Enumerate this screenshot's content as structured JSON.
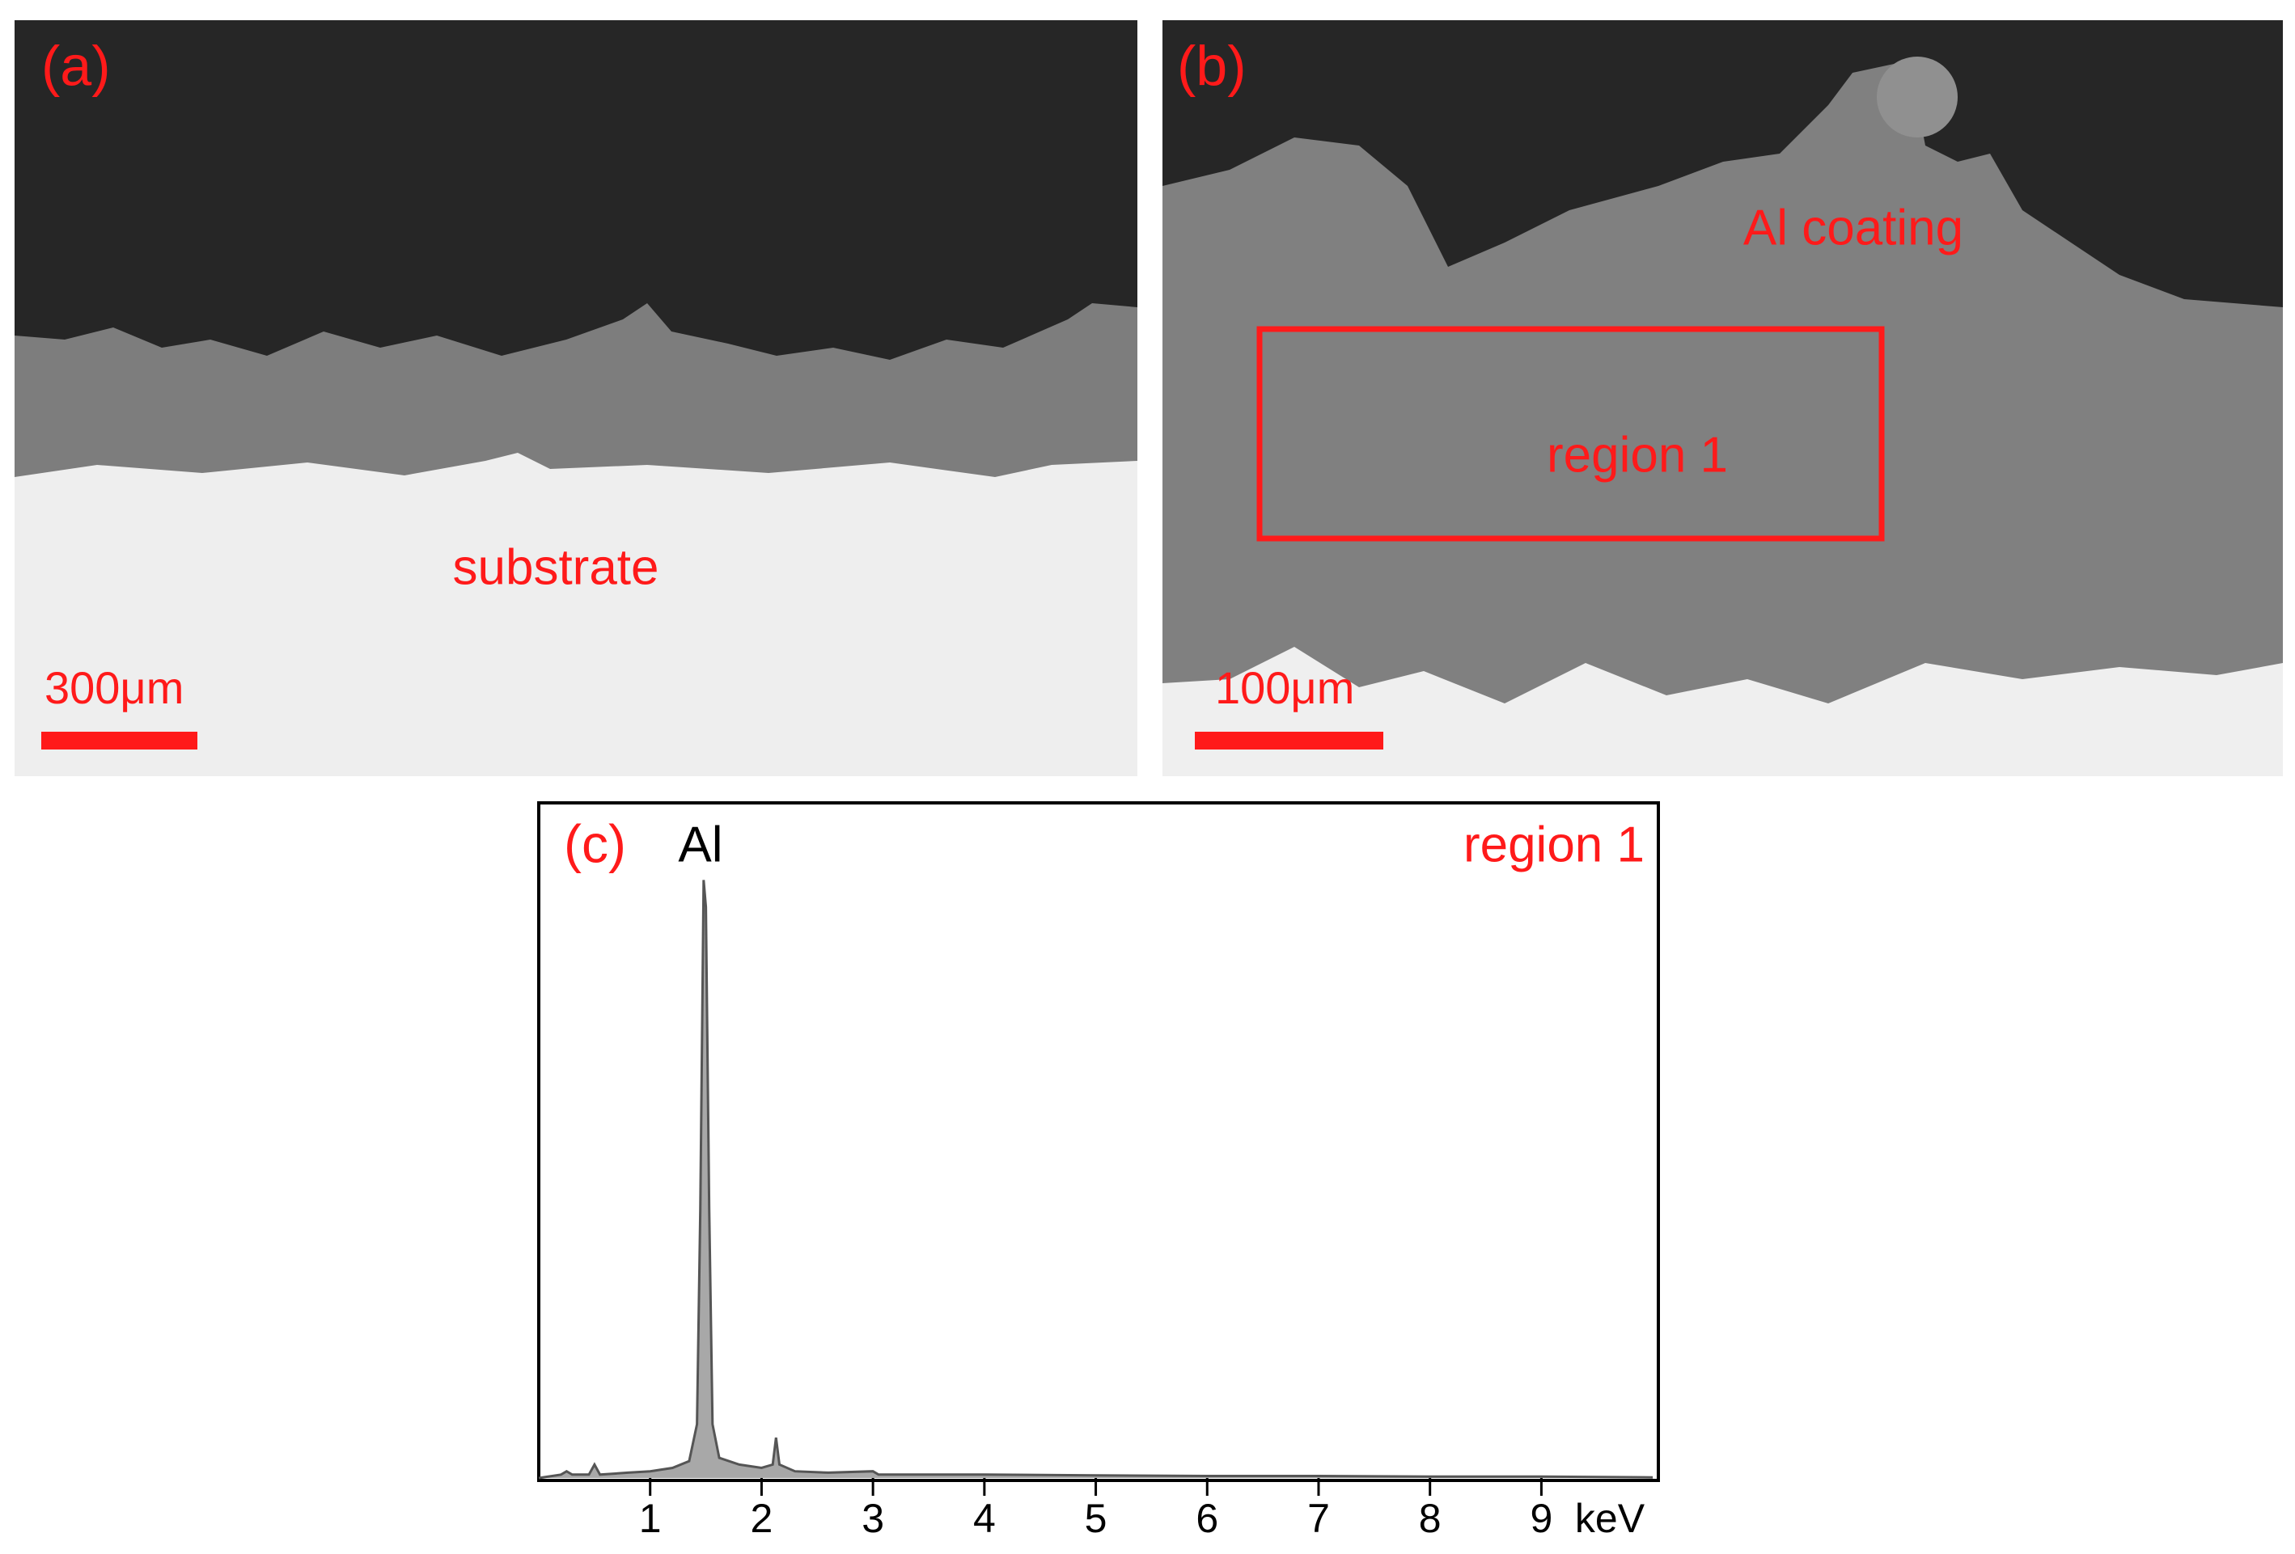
{
  "panels": [
    {
      "label": "(a)",
      "annotation": "substrate",
      "scale_bar": "300μm"
    },
    {
      "label": "(b)",
      "annotations": [
        "Al coating",
        "region 1"
      ],
      "scale_bar": "100μm"
    }
  ],
  "chart_data": {
    "type": "area",
    "panel_label": "(c)",
    "peak_label": "Al",
    "annotation": "region 1",
    "xlabel": "keV",
    "color": "#a8a8a8",
    "stroke": "#555555",
    "x": [
      0,
      0.2,
      0.25,
      0.3,
      0.45,
      0.5,
      0.55,
      0.8,
      1.0,
      1.2,
      1.35,
      1.42,
      1.45,
      1.48,
      1.5,
      1.53,
      1.56,
      1.62,
      1.8,
      2.0,
      2.1,
      2.13,
      2.16,
      2.3,
      2.6,
      3.0,
      3.05,
      4,
      5,
      6,
      7,
      8,
      9,
      10
    ],
    "values": [
      0,
      0.5,
      1,
      0.5,
      0.5,
      2,
      0.5,
      0.8,
      1,
      1.5,
      2.5,
      8,
      40,
      89,
      85,
      40,
      8,
      3,
      2,
      1.5,
      2,
      6,
      2,
      1,
      0.8,
      1,
      0.5,
      0.5,
      0.4,
      0.3,
      0.3,
      0.2,
      0.2,
      0.1
    ],
    "xlim": [
      0,
      10.05
    ],
    "ylim": [
      0,
      100
    ],
    "xticks": [
      1,
      2,
      3,
      4,
      5,
      6,
      7,
      8,
      9
    ]
  }
}
